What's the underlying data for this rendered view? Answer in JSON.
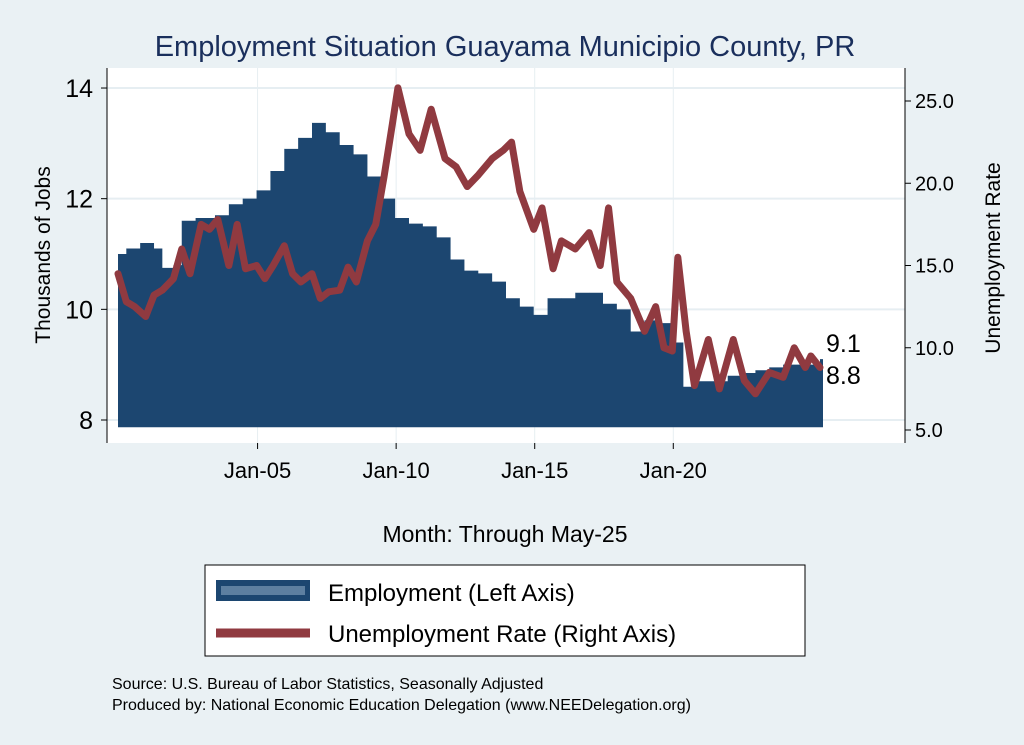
{
  "chart_data": {
    "type": "area+line",
    "title": "Employment Situation Guayama Municipio  County, PR",
    "xlabel": "Month: Through May-25",
    "ylabel_left": "Thousands of Jobs",
    "ylabel_right": "Unemployment Rate",
    "x_ticks": [
      {
        "value": 2005,
        "label": "Jan-05"
      },
      {
        "value": 2010,
        "label": "Jan-10"
      },
      {
        "value": 2015,
        "label": "Jan-15"
      },
      {
        "value": 2020,
        "label": "Jan-20"
      }
    ],
    "y_left_ticks": [
      "8",
      "10",
      "12",
      "14"
    ],
    "y_left_tick_values": [
      8,
      10,
      12,
      14
    ],
    "y_right_ticks": [
      "5.0",
      "10.0",
      "15.0",
      "20.0",
      "25.0"
    ],
    "y_right_tick_values": [
      5,
      10,
      15,
      20,
      25
    ],
    "ylim_left": [
      7.87,
      14.35
    ],
    "ylim_right": [
      4.6,
      26.5
    ],
    "xlim": [
      1999.75,
      2028.6
    ],
    "grid": true,
    "legend_position": "bottom",
    "series": [
      {
        "name": "Employment (Left Axis)",
        "axis": "left",
        "color": "#1c4670",
        "x": [
          2000,
          2000.3,
          2000.8,
          2001.3,
          2001.6,
          2002,
          2002.3,
          2002.8,
          2003.5,
          2004,
          2004.5,
          2005,
          2005.5,
          2006,
          2006.5,
          2007,
          2007.5,
          2008,
          2008.5,
          2009,
          2009.5,
          2010,
          2010.5,
          2011,
          2011.5,
          2012,
          2012.5,
          2013,
          2013.5,
          2014,
          2014.5,
          2015,
          2015.5,
          2016,
          2016.5,
          2017,
          2017.5,
          2018,
          2018.5,
          2019,
          2019.5,
          2020,
          2020.2,
          2020.4,
          2020.8,
          2021.5,
          2022,
          2022.5,
          2023,
          2023.5,
          2024,
          2024.5,
          2025,
          2025.33
        ],
        "values": [
          11.0,
          11.1,
          11.2,
          11.1,
          10.75,
          10.8,
          11.6,
          11.65,
          11.7,
          11.9,
          12.0,
          12.15,
          12.5,
          12.9,
          13.1,
          13.37,
          13.2,
          12.97,
          12.8,
          12.4,
          12.0,
          11.65,
          11.55,
          11.5,
          11.3,
          10.9,
          10.7,
          10.65,
          10.5,
          10.2,
          10.05,
          9.9,
          10.2,
          10.2,
          10.3,
          10.3,
          10.1,
          10.0,
          9.6,
          9.8,
          9.75,
          9.4,
          9.4,
          8.6,
          8.7,
          8.7,
          8.8,
          8.85,
          8.9,
          8.95,
          9.0,
          9.0,
          9.0,
          9.1
        ]
      },
      {
        "name": "Unemployment Rate (Right Axis)",
        "axis": "right",
        "color": "#903a40",
        "x": [
          2000,
          2000.3,
          2000.6,
          2001,
          2001.3,
          2001.6,
          2002,
          2002.3,
          2002.6,
          2003,
          2003.3,
          2003.6,
          2004,
          2004.3,
          2004.6,
          2005,
          2005.3,
          2005.6,
          2006,
          2006.3,
          2006.6,
          2007,
          2007.3,
          2007.6,
          2008,
          2008.3,
          2008.6,
          2009,
          2009.3,
          2009.6,
          2009.9,
          2010.1,
          2010.5,
          2010.9,
          2011.3,
          2011.8,
          2012.2,
          2012.6,
          2013,
          2013.5,
          2013.9,
          2014.2,
          2014.5,
          2015,
          2015.3,
          2015.7,
          2016,
          2016.5,
          2017,
          2017.4,
          2017.7,
          2018,
          2018.5,
          2019,
          2019.4,
          2019.7,
          2020,
          2020.2,
          2020.5,
          2020.8,
          2021.3,
          2021.7,
          2022.2,
          2022.6,
          2023,
          2023.5,
          2024,
          2024.4,
          2024.8,
          2025,
          2025.33
        ],
        "values": [
          14.5,
          12.8,
          12.5,
          11.9,
          13.2,
          13.5,
          14.2,
          16.0,
          14.5,
          17.5,
          17.2,
          17.8,
          15.0,
          17.5,
          14.8,
          15.0,
          14.2,
          15.0,
          16.2,
          14.5,
          14.0,
          14.5,
          13.0,
          13.4,
          13.5,
          14.9,
          14.0,
          16.5,
          17.5,
          20.4,
          23.6,
          25.8,
          23.0,
          22.0,
          24.5,
          21.5,
          21.0,
          19.8,
          20.5,
          21.5,
          22.0,
          22.5,
          19.5,
          17.2,
          18.5,
          14.8,
          16.5,
          16.0,
          17.0,
          15.0,
          18.5,
          14.0,
          13.0,
          11.0,
          12.5,
          10.0,
          9.8,
          15.5,
          11.0,
          7.7,
          10.5,
          7.5,
          10.5,
          8.0,
          7.2,
          8.5,
          8.2,
          10.0,
          8.8,
          9.5,
          8.8
        ]
      }
    ],
    "end_labels": [
      "9.1",
      "8.8"
    ]
  },
  "source_text": "Source: U.S. Bureau of Labor Statistics, Seasonally Adjusted",
  "produced_text": "Produced by: National Economic Education Delegation (www.NEEDelegation.org)"
}
